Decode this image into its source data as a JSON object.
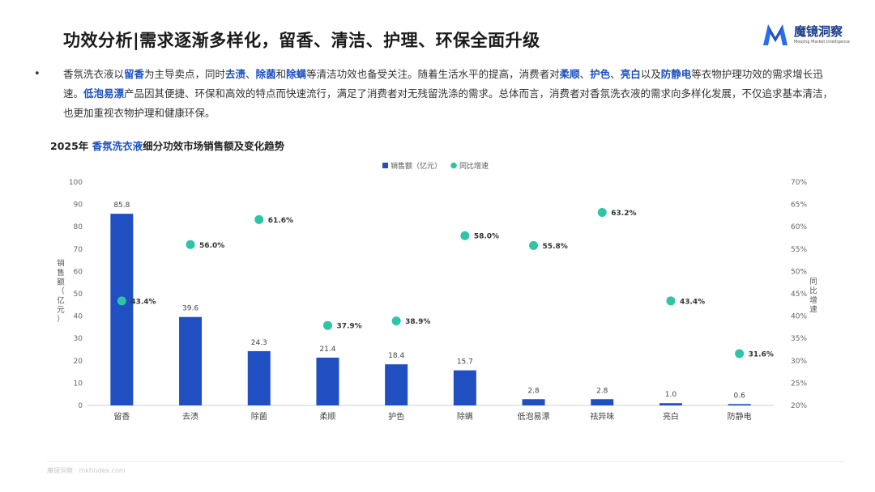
{
  "header": {
    "title": "功效分析|需求逐渐多样化，留香、清洁、护理、环保全面升级",
    "logo_name": "魔镜洞察",
    "logo_sub": "Moojing Market Intelligence"
  },
  "paragraph": {
    "bullet": "•",
    "segments": [
      {
        "t": "香氛洗衣液以",
        "h": false
      },
      {
        "t": "留香",
        "h": true
      },
      {
        "t": "为主导卖点，同时",
        "h": false
      },
      {
        "t": "去渍",
        "h": true
      },
      {
        "t": "、",
        "h": false
      },
      {
        "t": "除菌",
        "h": true
      },
      {
        "t": "和",
        "h": false
      },
      {
        "t": "除螨",
        "h": true
      },
      {
        "t": "等清洁功效也备受关注。随着生活水平的提高，消费者对",
        "h": false
      },
      {
        "t": "柔顺",
        "h": true
      },
      {
        "t": "、",
        "h": false
      },
      {
        "t": "护色",
        "h": true
      },
      {
        "t": "、",
        "h": false
      },
      {
        "t": "亮白",
        "h": true
      },
      {
        "t": "以及",
        "h": false
      },
      {
        "t": "防静电",
        "h": true
      },
      {
        "t": "等衣物护理功效的需求增长迅速。",
        "h": false
      },
      {
        "t": "低泡易漂",
        "h": true
      },
      {
        "t": "产品因其便捷、环保和高效的特点而快速流行，满足了消费者对无残留洗涤的需求。总体而言，消费者对香氛洗衣液的需求向多样化发展，不仅追求基本清洁，也更加重视衣物护理和健康环保。",
        "h": false
      }
    ]
  },
  "chart_title": {
    "prefix": "2025年 ",
    "highlight": "香氛洗衣液",
    "suffix": "细分功效市场销售额及变化趋势"
  },
  "chart_data": {
    "type": "bar",
    "title": "2025年 香氛洗衣液细分功效市场销售额及变化趋势",
    "categories": [
      "留香",
      "去渍",
      "除菌",
      "柔顺",
      "护色",
      "除螨",
      "低泡易漂",
      "祛异味",
      "亮白",
      "防静电"
    ],
    "series": [
      {
        "name": "销售额（亿元）",
        "type": "bar",
        "axis": "left",
        "color": "#1f4fc1",
        "values": [
          85.8,
          39.6,
          24.3,
          21.4,
          18.4,
          15.7,
          2.8,
          2.8,
          1.0,
          0.6
        ],
        "labels": [
          "85.8",
          "39.6",
          "24.3",
          "21.4",
          "18.4",
          "15.7",
          "2.8",
          "2.8",
          "1.0",
          "0.6"
        ]
      },
      {
        "name": "同比增速",
        "type": "scatter",
        "axis": "right",
        "color": "#2ec4a6",
        "values": [
          43.4,
          56.0,
          61.6,
          37.9,
          38.9,
          58.0,
          55.8,
          63.2,
          43.4,
          31.6
        ],
        "labels": [
          "43.4%",
          "56.0%",
          "61.6%",
          "37.9%",
          "38.9%",
          "58.0%",
          "55.8%",
          "63.2%",
          "43.4%",
          "31.6%"
        ]
      }
    ],
    "ylabel": "销售额（亿元）",
    "y2label": "同比增速",
    "ylim": [
      0,
      100
    ],
    "y2lim": [
      20,
      70
    ],
    "yticks": [
      "0",
      "10",
      "20",
      "30",
      "40",
      "50",
      "60",
      "70",
      "80",
      "90",
      "100"
    ],
    "y2ticks": [
      "20%",
      "25%",
      "30%",
      "35%",
      "40%",
      "45%",
      "50%",
      "55%",
      "60%",
      "65%",
      "70%"
    ],
    "legend": "top-center",
    "grid": false
  },
  "footer": {
    "text": "魔镜洞察 · mktindex.com"
  }
}
